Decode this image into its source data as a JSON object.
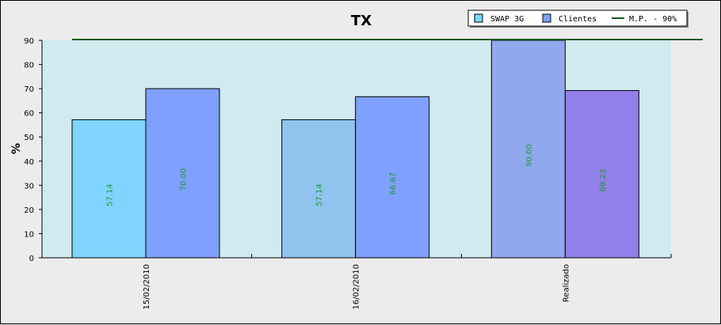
{
  "chart_data": {
    "type": "bar",
    "title": "TX",
    "xlabel": "",
    "ylabel": "%",
    "ylim": [
      0,
      90
    ],
    "yticks": [
      0,
      10,
      20,
      30,
      40,
      50,
      60,
      70,
      80,
      90
    ],
    "categories": [
      "15/02/2010",
      "16/02/2010",
      "Realizado"
    ],
    "series": [
      {
        "name": "SWAP 3G",
        "values": [
          57.14,
          57.14,
          90.0
        ],
        "value_labels": [
          "57.14",
          "57.14",
          "90.00"
        ],
        "colors": [
          "#80d4ff",
          "#90c4ee",
          "#90a8ee"
        ],
        "legend_color": "#80d4ff"
      },
      {
        "name": "Clientes",
        "values": [
          70.0,
          66.67,
          69.23
        ],
        "value_labels": [
          "70.00",
          "66.67",
          "69.23"
        ],
        "colors": [
          "#80a0ff",
          "#80a0ff",
          "#9080e8"
        ],
        "legend_color": "#80a0ff"
      }
    ],
    "reference_line": {
      "name": "M.P. - 90%",
      "value": 90,
      "color": "#1a5a1a"
    },
    "plot_background": "#d0eaf0",
    "legend_placement": "top-right"
  }
}
